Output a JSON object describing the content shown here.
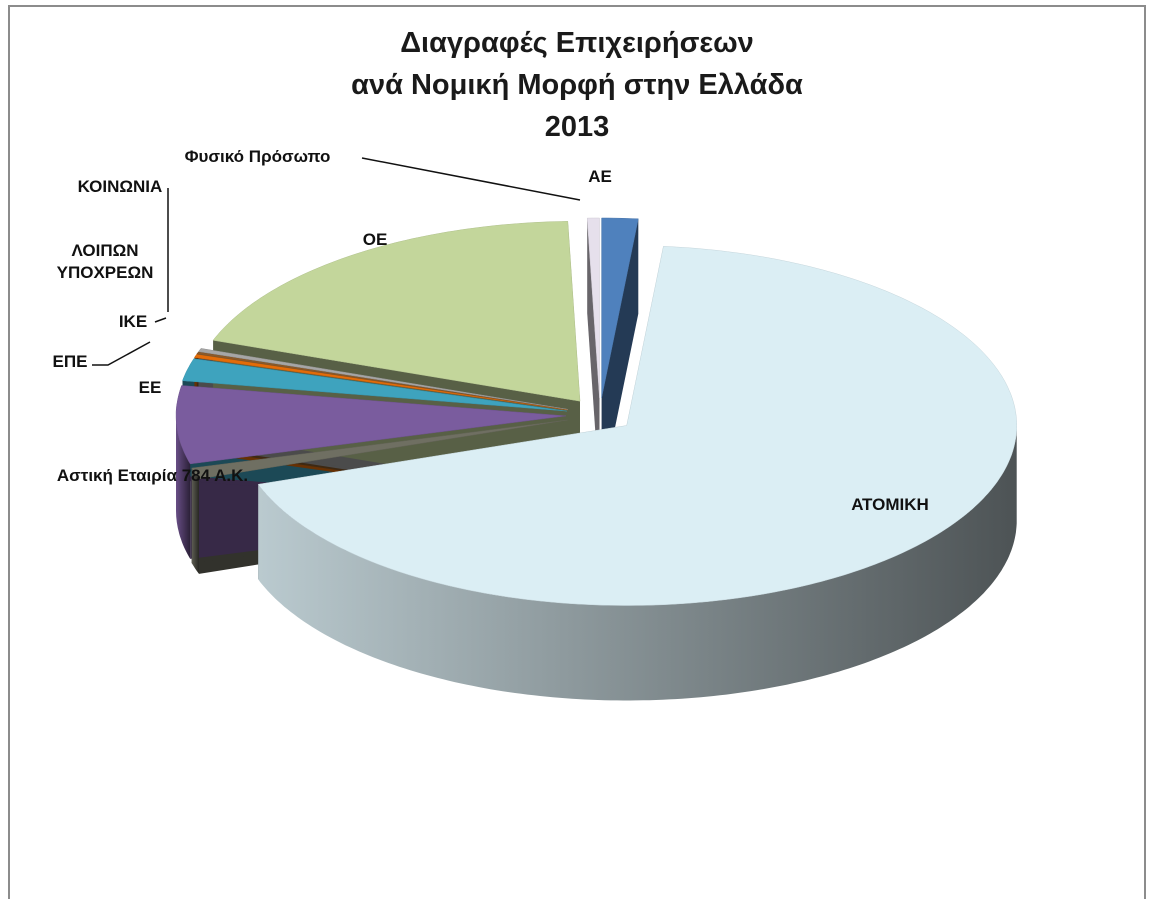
{
  "chart_data": {
    "type": "pie3d",
    "title": "Διαγραφές Επιχειρήσεων",
    "subtitle": "ανά Νομική Μορφή στην Ελλάδα",
    "year": "2013",
    "categories": [
      "ΑΕ",
      "ΑΤΟΜΙΚΗ",
      "Αστική Εταιρία 784 Α.Κ.",
      "ΕΕ",
      "ΕΠΕ",
      "ΙΚΕ",
      "ΚΟΙΝΩΝΙΑ",
      "ΛΟΙΠΩΝ ΥΠΟΧΡΕΩΝ",
      "ΟΕ",
      "Φυσικό Πρόσωπο"
    ],
    "values": [
      1.5,
      68.2,
      1,
      7,
      2,
      0.3,
      0.2,
      0.3,
      19,
      0.5
    ],
    "colors": [
      "#4f81bd",
      "#dbeef4",
      "#6f6f62",
      "#7a5c9e",
      "#3ea3be",
      "#e36c09",
      "#8a5a2b",
      "#a6a6a6",
      "#c3d69b",
      "#e6e0ec"
    ]
  }
}
